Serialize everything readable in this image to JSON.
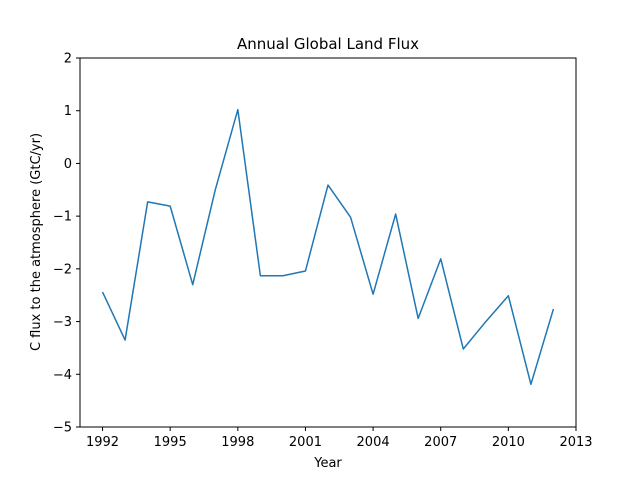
{
  "chart_data": {
    "type": "line",
    "title": "Annual Global Land Flux",
    "xlabel": "Year",
    "ylabel": "C flux to the atmosphere (GtC/yr)",
    "xlim": [
      1991,
      2013
    ],
    "ylim": [
      -5,
      2
    ],
    "xticks": [
      1992,
      1995,
      1998,
      2001,
      2004,
      2007,
      2010,
      2013
    ],
    "yticks": [
      -5,
      -4,
      -3,
      -2,
      -1,
      0,
      1,
      2
    ],
    "grid": false,
    "series": [
      {
        "color": "#1f77b4",
        "x": [
          1992,
          1993,
          1994,
          1995,
          1996,
          1997,
          1998,
          1999,
          2000,
          2001,
          2002,
          2003,
          2004,
          2005,
          2006,
          2007,
          2008,
          2009,
          2010,
          2011,
          2012
        ],
        "y": [
          -2.44,
          -3.35,
          -0.73,
          -0.81,
          -2.3,
          -0.5,
          1.02,
          -2.13,
          -2.13,
          -2.04,
          -0.41,
          -1.02,
          -2.48,
          -0.96,
          -2.94,
          -1.81,
          -3.52,
          -3.0,
          -2.51,
          -4.19,
          -2.76
        ]
      }
    ]
  }
}
